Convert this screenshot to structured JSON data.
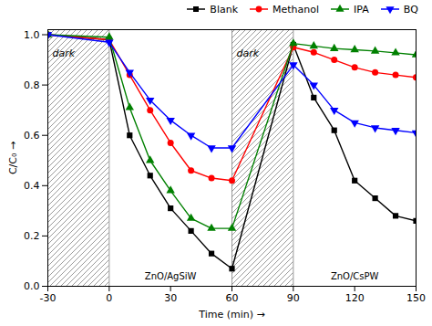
{
  "chart_data": {
    "type": "line",
    "xlabel": "Time (min)",
    "ylabel": "C/C₀",
    "xlim": [
      -30,
      150
    ],
    "ylim": [
      0.0,
      1.02
    ],
    "xticks": [
      -30,
      0,
      30,
      60,
      90,
      120,
      150
    ],
    "yticks": [
      {
        "value": 0.0,
        "label": "0.0"
      },
      0.2,
      0.4,
      0.6,
      0.8,
      {
        "value": 1.0,
        "label": "1.0"
      }
    ],
    "shaded_regions": [
      {
        "start": -30,
        "end": 0,
        "label": "dark"
      },
      {
        "start": 60,
        "end": 90,
        "label": "dark"
      }
    ],
    "catalyst_labels": [
      "ZnO/AgSiW",
      "ZnO/CsPW"
    ],
    "legend": "upper right",
    "x": [
      -30,
      0,
      10,
      20,
      30,
      40,
      50,
      60,
      90,
      100,
      110,
      120,
      130,
      140,
      150
    ],
    "series": [
      {
        "name": "Blank",
        "color": "#000000",
        "marker": "square",
        "values": [
          1.0,
          0.98,
          0.6,
          0.44,
          0.31,
          0.22,
          0.13,
          0.07,
          0.96,
          0.75,
          0.62,
          0.42,
          0.35,
          0.28,
          0.26
        ]
      },
      {
        "name": "Methanol",
        "color": "#ff0000",
        "marker": "circle",
        "values": [
          1.0,
          0.98,
          0.84,
          0.7,
          0.57,
          0.46,
          0.43,
          0.42,
          0.95,
          0.93,
          0.9,
          0.87,
          0.85,
          0.84,
          0.83
        ]
      },
      {
        "name": "IPA",
        "color": "#008000",
        "marker": "triangle-up",
        "values": [
          1.0,
          0.99,
          0.71,
          0.5,
          0.38,
          0.27,
          0.23,
          0.23,
          0.965,
          0.955,
          0.945,
          0.94,
          0.935,
          0.928,
          0.92
        ]
      },
      {
        "name": "BQ",
        "color": "#0000ff",
        "marker": "triangle-down",
        "values": [
          1.0,
          0.97,
          0.85,
          0.74,
          0.66,
          0.6,
          0.55,
          0.55,
          0.88,
          0.8,
          0.7,
          0.65,
          0.63,
          0.62,
          0.61
        ]
      }
    ]
  }
}
